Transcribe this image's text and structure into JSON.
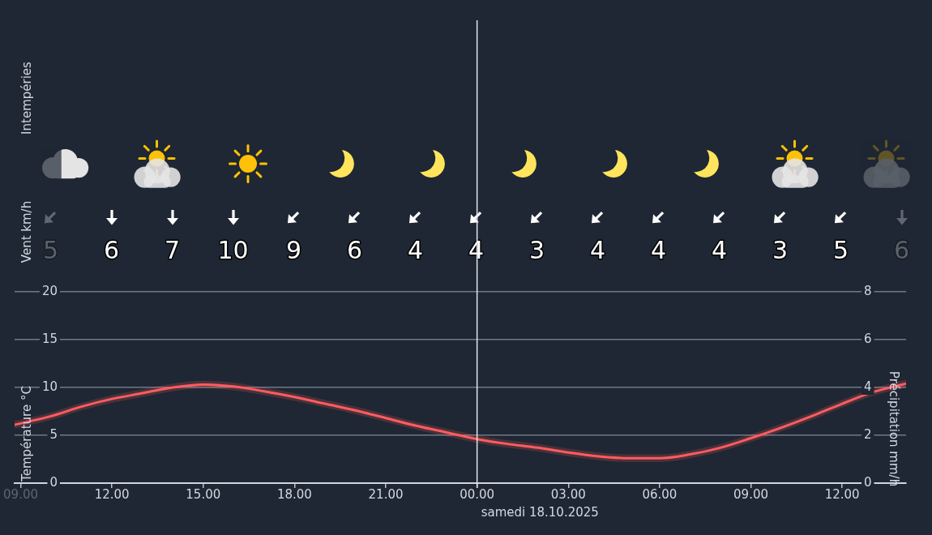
{
  "chart_data": [
    {
      "type": "other",
      "ylabel": "Vent km/h",
      "annotations": [
        "Intempéries"
      ],
      "values": [
        5,
        6,
        7,
        10,
        9,
        6,
        4,
        4,
        3,
        4,
        4,
        4,
        3,
        5,
        6
      ],
      "data_labels": true
    },
    {
      "type": "line",
      "ylabel": "Température °C",
      "y2label": "Précipitation mm/h",
      "xlim": [
        "2025-10-17T08:48",
        "2025-10-18T14:06"
      ],
      "xticks": [
        {
          "value": "2025-10-17T09:00",
          "label": "09.00"
        },
        {
          "value": "2025-10-17T12:00",
          "label": "12.00"
        },
        {
          "value": "2025-10-17T15:00",
          "label": "15.00"
        },
        {
          "value": "2025-10-17T18:00",
          "label": "18.00"
        },
        {
          "value": "2025-10-17T21:00",
          "label": "21.00"
        },
        {
          "value": "2025-10-18T00:00",
          "label": "00.00"
        },
        {
          "value": "2025-10-18T03:00",
          "label": "03.00"
        },
        {
          "value": "2025-10-18T06:00",
          "label": "06.00"
        },
        {
          "value": "2025-10-18T09:00",
          "label": "09.00"
        },
        {
          "value": "2025-10-18T12:00",
          "label": "12.00"
        }
      ],
      "ylim": [
        0,
        20
      ],
      "yticks": [
        0,
        5,
        10,
        15,
        20
      ],
      "y2lim": [
        0,
        8
      ],
      "y2ticks": [
        0,
        2,
        4,
        6,
        8
      ],
      "grid": "y",
      "ref_lines": [
        {
          "axis": "x",
          "value": "2025-10-18T00:00",
          "label": "samedi 18.10.2025",
          "color": "#e2e6ec"
        }
      ],
      "series": [
        {
          "color": "#ff5c5f",
          "x": [
            "2025-10-17T08:48",
            "2025-10-17T10:00",
            "2025-10-17T11:00",
            "2025-10-17T12:00",
            "2025-10-17T13:00",
            "2025-10-17T14:00",
            "2025-10-17T15:00",
            "2025-10-17T16:00",
            "2025-10-17T17:00",
            "2025-10-17T18:00",
            "2025-10-17T19:00",
            "2025-10-17T20:00",
            "2025-10-17T21:00",
            "2025-10-17T22:00",
            "2025-10-17T23:00",
            "2025-10-18T00:00",
            "2025-10-18T01:00",
            "2025-10-18T02:00",
            "2025-10-18T03:00",
            "2025-10-18T04:00",
            "2025-10-18T05:00",
            "2025-10-18T06:00",
            "2025-10-18T07:00",
            "2025-10-18T08:00",
            "2025-10-18T09:00",
            "2025-10-18T10:00",
            "2025-10-18T11:00",
            "2025-10-18T12:00",
            "2025-10-18T13:00",
            "2025-10-18T14:06"
          ],
          "values": [
            6.1,
            7.0,
            8.0,
            8.8,
            9.4,
            10.0,
            10.3,
            10.1,
            9.6,
            9.0,
            8.3,
            7.6,
            6.8,
            6.0,
            5.3,
            4.6,
            4.1,
            3.7,
            3.2,
            2.8,
            2.6,
            2.6,
            3.0,
            3.7,
            4.7,
            5.8,
            7.0,
            8.3,
            9.5,
            10.4
          ],
          "lower": [
            5.7,
            6.6,
            7.6,
            8.4,
            9.0,
            9.6,
            9.9,
            9.7,
            9.2,
            8.6,
            7.9,
            7.2,
            6.4,
            5.6,
            4.9,
            4.2,
            3.7,
            3.3,
            2.8,
            2.4,
            2.2,
            2.2,
            2.6,
            3.3,
            4.3,
            5.4,
            6.6,
            7.9,
            9.1,
            10.0
          ],
          "upper": [
            6.5,
            7.4,
            8.4,
            9.2,
            9.8,
            10.4,
            10.7,
            10.5,
            10.0,
            9.4,
            8.7,
            8.0,
            7.2,
            6.4,
            5.7,
            5.0,
            4.5,
            4.1,
            3.6,
            3.2,
            3.0,
            3.0,
            3.4,
            4.1,
            5.1,
            6.2,
            7.4,
            8.7,
            9.9,
            10.8
          ]
        }
      ]
    }
  ]
}
